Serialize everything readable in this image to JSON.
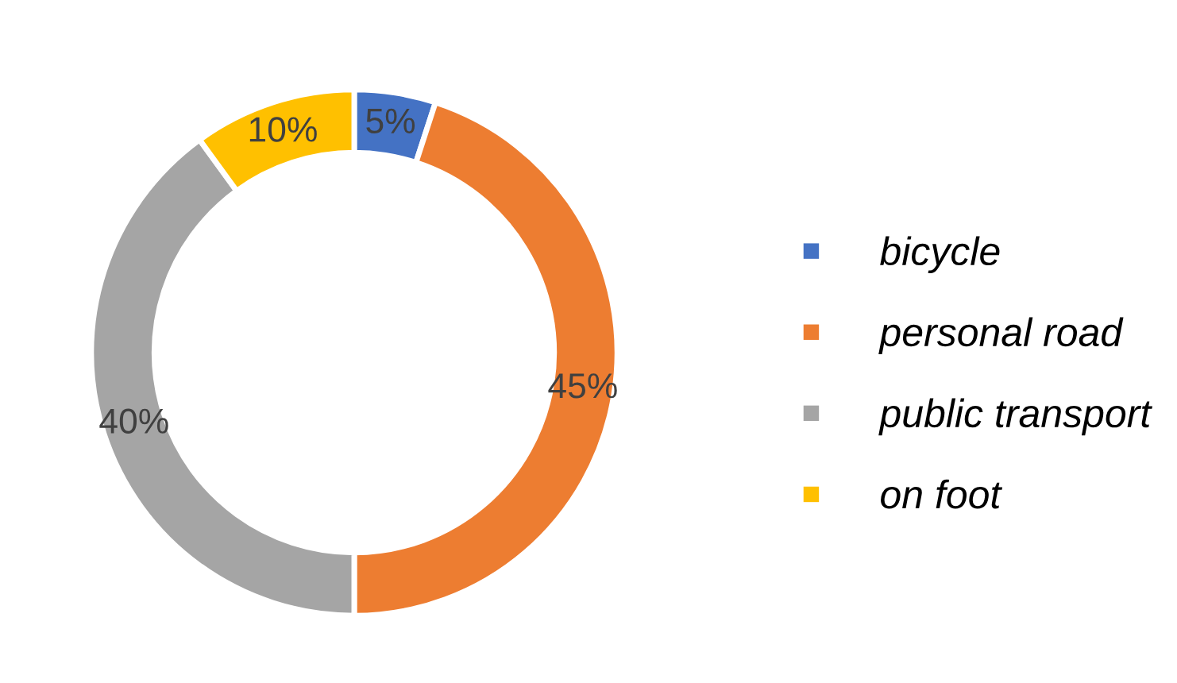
{
  "chart_data": {
    "type": "donut",
    "categories": [
      "bicycle",
      "personal road",
      "public transport",
      "on foot"
    ],
    "values": [
      5,
      45,
      40,
      10
    ],
    "colors": [
      "#4472c4",
      "#ed7d31",
      "#a5a5a5",
      "#ffc000"
    ],
    "value_labels": [
      "5%",
      "45%",
      "40%",
      "10%"
    ],
    "legend": "right"
  }
}
